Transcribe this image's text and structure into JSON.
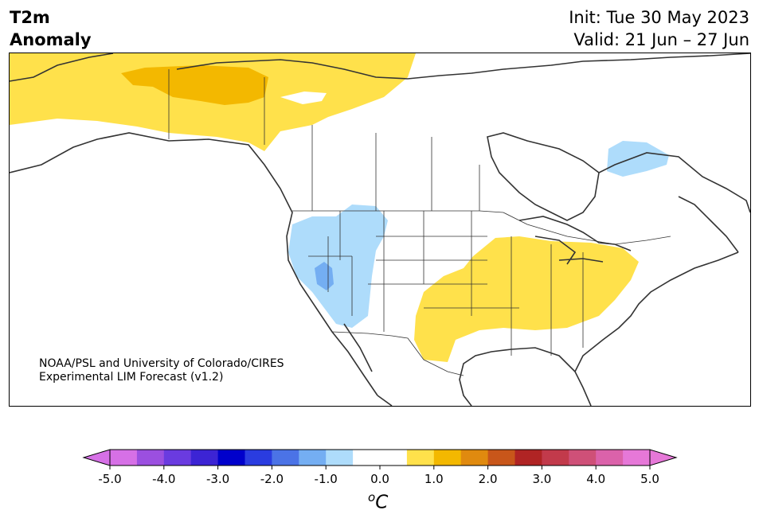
{
  "header": {
    "title_line1": "T2m",
    "title_line2": "Anomaly",
    "init": "Init: Tue 30 May 2023",
    "valid": "Valid: 21 Jun – 27 Jun"
  },
  "credit": {
    "line1": "NOAA/PSL and University of Colorado/CIRES",
    "line2": "Experimental LIM Forecast (v1.2)"
  },
  "colorbar": {
    "unit_base": "C",
    "unit_sup": "o",
    "tick_labels": [
      "-5.0",
      "-4.0",
      "-3.0",
      "-2.0",
      "-1.0",
      "0.0",
      "1.0",
      "2.0",
      "3.0",
      "4.0",
      "5.0"
    ],
    "colors": [
      "#d670e6",
      "#9b4fe0",
      "#6a3be0",
      "#3c24d4",
      "#0000cc",
      "#2a3ce0",
      "#4b73e6",
      "#74aef2",
      "#aedcfb",
      "#ffffff",
      "#ffffff",
      "#ffe14b",
      "#f3b800",
      "#e08a0f",
      "#c8561a",
      "#b02424",
      "#c23a4b",
      "#cf5078",
      "#db62aa",
      "#e678d8"
    ],
    "under_color": "#d670e6",
    "over_color": "#e678d8"
  },
  "map": {
    "anomaly_colors": {
      "warm_light": "#ffe14b",
      "warm_medium": "#f3b800",
      "cool_light": "#aedcfb",
      "cool_medium": "#74aef2"
    },
    "coast_color": "#333333"
  }
}
